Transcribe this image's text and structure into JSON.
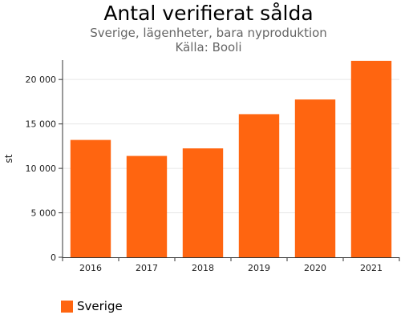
{
  "chart_data": {
    "type": "bar",
    "title": "Antal verifierat sålda",
    "subtitle": [
      "Sverige, lägenheter, bara nyproduktion",
      "Källa: Booli"
    ],
    "xlabel": "",
    "ylabel": "st",
    "categories": [
      "2016",
      "2017",
      "2018",
      "2019",
      "2020",
      "2021"
    ],
    "series": [
      {
        "name": "Sverige",
        "values": [
          13200,
          11400,
          12250,
          16100,
          17750,
          22100
        ]
      }
    ],
    "ylim": [
      0,
      22000
    ],
    "yticks": [
      0,
      5000,
      10000,
      15000,
      20000
    ],
    "ytick_labels": [
      "0",
      "5 000",
      "10 000",
      "15 000",
      "20 000"
    ],
    "grid": true,
    "legend_position": "bottom-left",
    "colors": {
      "bar": "#ff6510",
      "grid": "#e6e6e6",
      "axis": "#333333"
    }
  }
}
